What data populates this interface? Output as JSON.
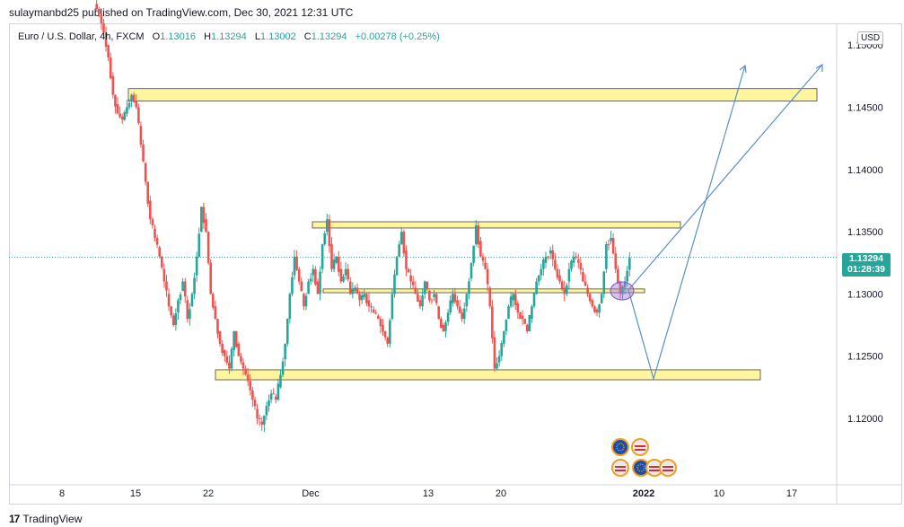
{
  "header": {
    "publisher_line": "sulaymanbd25 published on TradingView.com, Dec 30, 2021 12:31 UTC"
  },
  "legend": {
    "symbol": "Euro / U.S. Dollar, 4h, FXCM",
    "open_label": "O",
    "open": "1.13016",
    "high_label": "H",
    "high": "1.13294",
    "low_label": "L",
    "low": "1.13002",
    "close_label": "C",
    "close": "1.13294",
    "change": "+0.00278 (+0.25%)"
  },
  "currency_button": "USD",
  "price_badge": {
    "price": "1.13294",
    "countdown": "01:28:39"
  },
  "footer": {
    "logo_text": "TradingView"
  },
  "colors": {
    "up": "#26a69a",
    "down": "#ef5350",
    "zone_fill": "#fff59d",
    "zone_border": "#444444",
    "arrow": "#5b8fc9"
  },
  "chart_data": {
    "type": "candlestick",
    "yaxis": {
      "ticks": [
        "1.12000",
        "1.12500",
        "1.13000",
        "1.13500",
        "1.14000",
        "1.14500",
        "1.15000"
      ],
      "ylim": [
        1.1155,
        1.1515
      ]
    },
    "xaxis": {
      "tick_labels": [
        "8",
        "15",
        "22",
        "Dec",
        "13",
        "20",
        "2022",
        "10",
        "17"
      ]
    },
    "current_price": 1.13294,
    "zones": [
      {
        "low": 1.1455,
        "high": 1.1465
      },
      {
        "low": 1.1353,
        "high": 1.1358
      },
      {
        "low": 1.1301,
        "high": 1.1304
      },
      {
        "low": 1.1231,
        "high": 1.1239
      }
    ],
    "close_path": [
      1.1525,
      1.151,
      1.149,
      1.146,
      1.1445,
      1.144,
      1.145,
      1.146,
      1.145,
      1.142,
      1.139,
      1.136,
      1.1345,
      1.133,
      1.131,
      1.129,
      1.1275,
      1.1295,
      1.131,
      1.128,
      1.13,
      1.133,
      1.137,
      1.135,
      1.13,
      1.128,
      1.126,
      1.125,
      1.124,
      1.127,
      1.125,
      1.124,
      1.123,
      1.1215,
      1.12,
      1.1195,
      1.121,
      1.122,
      1.1215,
      1.1235,
      1.126,
      1.13,
      1.133,
      1.131,
      1.129,
      1.131,
      1.132,
      1.13,
      1.134,
      1.136,
      1.132,
      1.133,
      1.131,
      1.132,
      1.13,
      1.1305,
      1.1295,
      1.13,
      1.129,
      1.1285,
      1.128,
      1.127,
      1.126,
      1.13,
      1.133,
      1.135,
      1.132,
      1.131,
      1.13,
      1.129,
      1.131,
      1.1295,
      1.13,
      1.128,
      1.127,
      1.1285,
      1.13,
      1.129,
      1.128,
      1.13,
      1.1325,
      1.1355,
      1.133,
      1.132,
      1.129,
      1.124,
      1.125,
      1.127,
      1.129,
      1.13,
      1.1285,
      1.128,
      1.127,
      1.129,
      1.131,
      1.132,
      1.133,
      1.1335,
      1.132,
      1.131,
      1.13,
      1.132,
      1.133,
      1.1325,
      1.131,
      1.13,
      1.129,
      1.1285,
      1.13,
      1.134,
      1.1345,
      1.132,
      1.13,
      1.131,
      1.1329
    ],
    "projections": [
      {
        "from_date_frac": 0.0,
        "path": [
          [
            1.1301,
            1.1301
          ],
          [
            1.1232,
            0.0
          ],
          [
            1.149,
            0.0
          ]
        ]
      }
    ]
  }
}
